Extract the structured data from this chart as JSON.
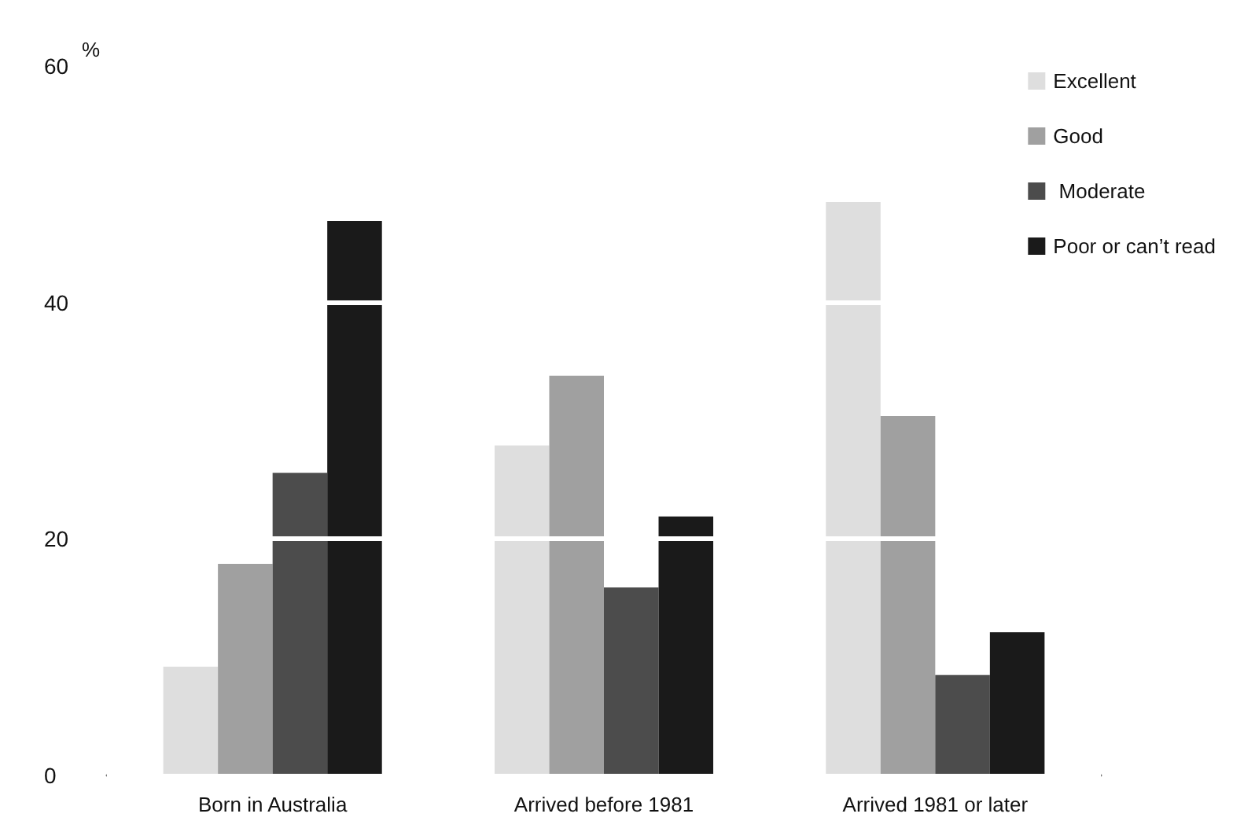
{
  "chart_data": {
    "type": "bar",
    "ylabel": "%",
    "categories": [
      "Born in Australia",
      "Arrived before 1981",
      "Arrived 1981 or later"
    ],
    "series": [
      {
        "name": "Excellent",
        "color": "#dedede",
        "values": [
          9.2,
          27.9,
          48.5
        ]
      },
      {
        "name": "Good",
        "color": "#a0a0a0",
        "values": [
          17.9,
          33.8,
          30.4
        ]
      },
      {
        "name": " Moderate",
        "color": "#4c4c4c",
        "values": [
          25.6,
          15.9,
          8.5
        ]
      },
      {
        "name": "Poor or can’t read",
        "color": "#1a1a1a",
        "values": [
          46.9,
          21.9,
          12.1
        ]
      }
    ],
    "ylim": [
      0,
      60
    ],
    "yticks": [
      0,
      20,
      40,
      60
    ],
    "grid": "y",
    "legend": "top right"
  }
}
